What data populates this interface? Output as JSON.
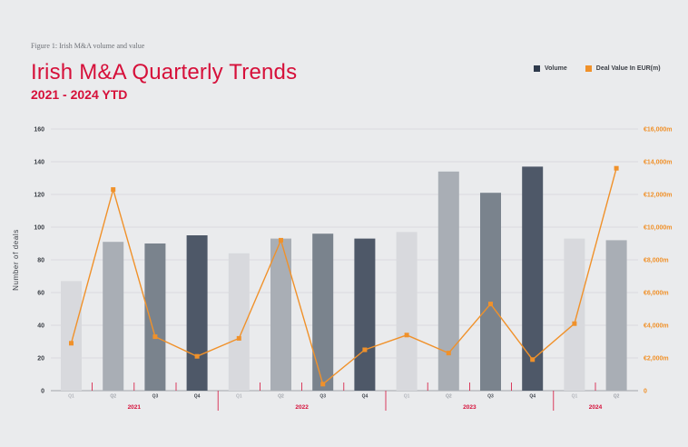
{
  "figure_label": "Figure 1: Irish M&A volume and value",
  "chart_data": {
    "type": "bar",
    "title": "Irish M&A Quarterly Trends",
    "subtitle": "2021 - 2024 YTD",
    "ylabel": "Number of deals",
    "ylim": [
      0,
      160
    ],
    "y_ticks": [
      0,
      20,
      40,
      60,
      80,
      100,
      120,
      140,
      160
    ],
    "y2lim": [
      0,
      16000
    ],
    "y2_ticks": [
      "0",
      "€2,000m",
      "€4,000m",
      "€6,000m",
      "€8,000m",
      "€10,000m",
      "€12,000m",
      "€14,000m",
      "€16,000m"
    ],
    "categories": [
      "Q1",
      "Q2",
      "Q3",
      "Q4",
      "Q1",
      "Q2",
      "Q3",
      "Q4",
      "Q1",
      "Q2",
      "Q3",
      "Q4",
      "Q1",
      "Q2"
    ],
    "years": [
      {
        "label": "2021",
        "start": 0,
        "end": 3
      },
      {
        "label": "2022",
        "start": 4,
        "end": 7
      },
      {
        "label": "2023",
        "start": 8,
        "end": 11
      },
      {
        "label": "2024",
        "start": 12,
        "end": 13
      }
    ],
    "series": [
      {
        "name": "Volume",
        "kind": "bar",
        "color": "#3e4a5c",
        "values": [
          67,
          91,
          90,
          95,
          84,
          93,
          96,
          93,
          97,
          134,
          121,
          137,
          93,
          92
        ]
      },
      {
        "name": "Deal Value In EUR(m)",
        "kind": "line",
        "axis": "right",
        "color": "#f0912a",
        "values": [
          2900,
          12300,
          3300,
          2100,
          3200,
          9200,
          400,
          2500,
          3400,
          2300,
          5300,
          1900,
          4100,
          13600
        ]
      }
    ],
    "bar_colors": [
      "#d8d9dd",
      "#a9aeb5",
      "#7a838d",
      "#4e5868"
    ],
    "tick_label_colors": [
      "#b3b6bc",
      "#9ea2a9",
      "#4a4f57",
      "#3a3f47"
    ],
    "accent_color": "#d6103a",
    "grid": true,
    "legend_position": "top-right"
  }
}
